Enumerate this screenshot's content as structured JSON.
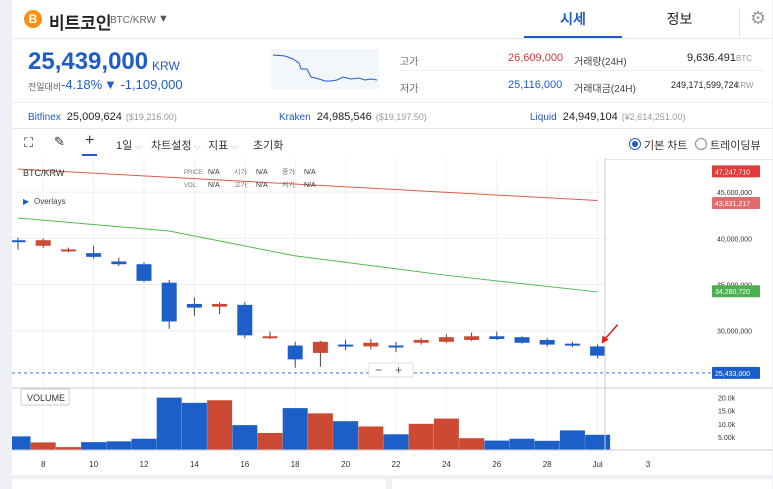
{
  "coin": {
    "name": "비트코인",
    "pair": "BTC/KRW",
    "icon": "bitcoin-icon",
    "icon_glyph": "B"
  },
  "tabs": [
    {
      "label": "시세"
    },
    {
      "label": "정보"
    }
  ],
  "price": {
    "value": "25,439,000",
    "unit": "KRW",
    "change_label": "전일대비",
    "change_pct": "-4.18%",
    "change_amt": "▼ -1,109,000"
  },
  "stats": {
    "high_label": "고가",
    "high": "26,609,000",
    "low_label": "저가",
    "low": "25,116,000",
    "vol_label": "거래량(24H)",
    "vol": "9,636.491",
    "vol_unit": "BTC",
    "amt_label": "거래대금(24H)",
    "amt": "249,171,599,724",
    "amt_unit": "KRW"
  },
  "exchanges": [
    {
      "name": "Bitfinex",
      "price": "25,009,624",
      "sub": "($19,216.00)"
    },
    {
      "name": "Kraken",
      "price": "24,985,546",
      "sub": "($19,197.50)"
    },
    {
      "name": "Liquid",
      "price": "24,949,104",
      "sub": "(¥2,614,251.00)"
    }
  ],
  "toolbar": {
    "interval": "1일",
    "settings": "차트설정",
    "indicator": "지표",
    "reset": "초기화",
    "basic_chart": "기본 차트",
    "trading_view": "트레이딩뷰"
  },
  "chart_legend": {
    "pair": "BTC/KRW",
    "overlays": "Overlays",
    "price_k": "PRICE:",
    "price_v": "N/A",
    "open_k": "시가:",
    "open_v": "N/A",
    "close_k": "종가:",
    "close_v": "N/A",
    "vol_k": "VOL:",
    "vol_v": "N/A",
    "high_k": "고가:",
    "high_v": "N/A",
    "low_k": "저가:",
    "low_v": "N/A",
    "volume": "VOLUME",
    "zoom_out": "−",
    "zoom_in": "+"
  },
  "chart_data": {
    "type": "candlestick",
    "x": [
      "7",
      "8",
      "9",
      "10",
      "11",
      "12",
      "13",
      "14",
      "15",
      "16",
      "17",
      "18",
      "19",
      "20",
      "21",
      "22",
      "23",
      "24",
      "25",
      "26",
      "27",
      "28",
      "29",
      "30"
    ],
    "x_tick_labels": [
      "8",
      "10",
      "12",
      "14",
      "16",
      "18",
      "20",
      "22",
      "24",
      "26",
      "28",
      "Jul",
      "3"
    ],
    "open": [
      39800000,
      39200000,
      38600000,
      38400000,
      37500000,
      37200000,
      35200000,
      32900000,
      32600000,
      32800000,
      29200000,
      28400000,
      27600000,
      28500000,
      28300000,
      28400000,
      28700000,
      28800000,
      29000000,
      29400000,
      29300000,
      29000000,
      28600000,
      28300000
    ],
    "close": [
      39600000,
      39800000,
      38800000,
      38000000,
      37200000,
      35400000,
      31000000,
      32500000,
      32900000,
      29500000,
      29400000,
      26900000,
      28800000,
      28400000,
      28700000,
      28200000,
      29000000,
      29300000,
      29400000,
      29100000,
      28700000,
      28500000,
      28400000,
      27300000
    ],
    "high": [
      40100000,
      40000000,
      39000000,
      39200000,
      37900000,
      37400000,
      35500000,
      33600000,
      33100000,
      33100000,
      29900000,
      28800000,
      28900000,
      29000000,
      29100000,
      28800000,
      29200000,
      29600000,
      29800000,
      29900000,
      29400000,
      29200000,
      28800000,
      28500000
    ],
    "low": [
      38800000,
      39000000,
      38500000,
      37800000,
      37000000,
      35300000,
      30200000,
      31600000,
      31800000,
      29200000,
      29100000,
      26000000,
      26100000,
      27900000,
      28000000,
      27700000,
      28500000,
      28700000,
      28900000,
      29000000,
      28600000,
      28300000,
      28200000,
      27000000
    ],
    "volume": [
      5200,
      2900,
      1100,
      3000,
      3300,
      4300,
      20000,
      18000,
      19000,
      9500,
      6500,
      16000,
      14000,
      11000,
      9000,
      6000,
      10000,
      12000,
      4500,
      3600,
      4300,
      3500,
      7500,
      5800
    ],
    "ma_long": [
      {
        "x": "7",
        "y": 47500000
      },
      {
        "x": "30",
        "y": 44100000
      }
    ],
    "ma_short": [
      {
        "x": "7",
        "y": 42200000
      },
      {
        "x": "13",
        "y": 40800000
      },
      {
        "x": "18",
        "y": 38100000
      },
      {
        "x": "24",
        "y": 36000000
      },
      {
        "x": "30",
        "y": 34200000
      }
    ],
    "y_ticks": [
      "45,000,000",
      "40,000,000",
      "35,000,000",
      "30,000,000"
    ],
    "vol_ticks": [
      "20.0k",
      "15.0k",
      "10.0k",
      "5.00k"
    ],
    "ylim": [
      23800000,
      48700000
    ],
    "vol_max": 21000,
    "price_tags": [
      {
        "label": "47,247,710",
        "value": 47247710,
        "color": "#e23b3b"
      },
      {
        "label": "43,831,217",
        "value": 43831217,
        "color": "#e26b6b"
      },
      {
        "label": "34,280,720",
        "value": 34280720,
        "color": "#4caf50"
      },
      {
        "label": "25,433,000",
        "value": 25433000,
        "color": "#1d5dc7"
      }
    ],
    "colors": {
      "up": "#cc4a33",
      "down": "#1c5fc8",
      "ma_long": "#e05a4e",
      "ma_short": "#52b852",
      "last": "#1d5dc7",
      "arrow": "#e31b1b"
    }
  }
}
